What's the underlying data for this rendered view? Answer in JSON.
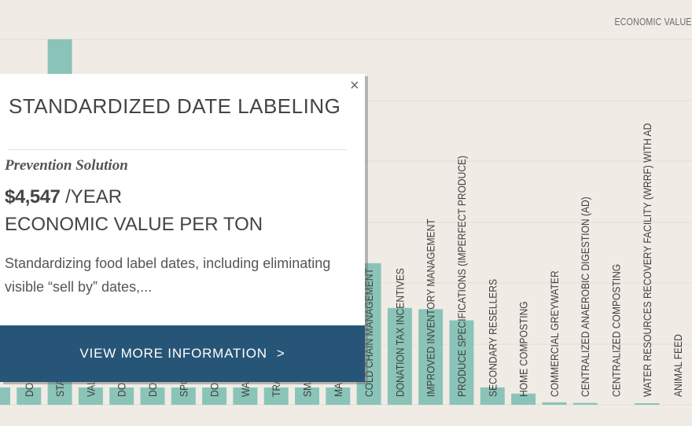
{
  "header": {
    "legend_label": "ECONOMIC VALUE"
  },
  "popup": {
    "close_symbol": "×",
    "title": "STANDARDIZED DATE LABELING",
    "subtitle": "Prevention Solution",
    "value": "$4,547",
    "value_suffix": "/YEAR",
    "unit_label": "ECONOMIC VALUE PER TON",
    "description": "Standardizing food label dates, including eliminating visible “sell by” dates,...",
    "button_label": "VIEW MORE INFORMATION",
    "button_chevron": ">"
  },
  "colors": {
    "background": "#f0ece5",
    "bar": "#8ac4b8",
    "bar_edge": "#6aab9d",
    "gridline": "#e2ddd3",
    "popup_button": "#275577"
  },
  "chart_data": {
    "type": "bar",
    "categories": [
      "",
      "DO",
      "STA",
      "VAL",
      "DO",
      "DO",
      "SPO",
      "DO",
      "WA",
      "TRA",
      "SMA",
      "MA",
      "COLD CHAIN MANAGEMENT",
      "DONATION TAX INCENTIVES",
      "IMPROVED INVENTORY MANAGEMENT",
      "PRODUCE SPECIFICATIONS (IMPERFECT PRODUCE)",
      "SECONDARY RESELLERS",
      "HOME COMPOSTING",
      "COMMERCIAL GREYWATER",
      "CENTRALIZED ANAEROBIC DIGESTION (AD)",
      "CENTRALIZED COMPOSTING",
      "WATER RESOURCES RECOVERY FACILITY (WRRF) WITH AD",
      "ANIMAL FEED"
    ],
    "values": [
      null,
      null,
      4547,
      null,
      null,
      null,
      null,
      null,
      null,
      null,
      null,
      null,
      1140,
      780,
      770,
      680,
      140,
      90,
      20,
      15,
      0,
      10,
      0
    ],
    "title": "",
    "xlabel": "",
    "ylabel": "ECONOMIC VALUE",
    "grid": true
  }
}
